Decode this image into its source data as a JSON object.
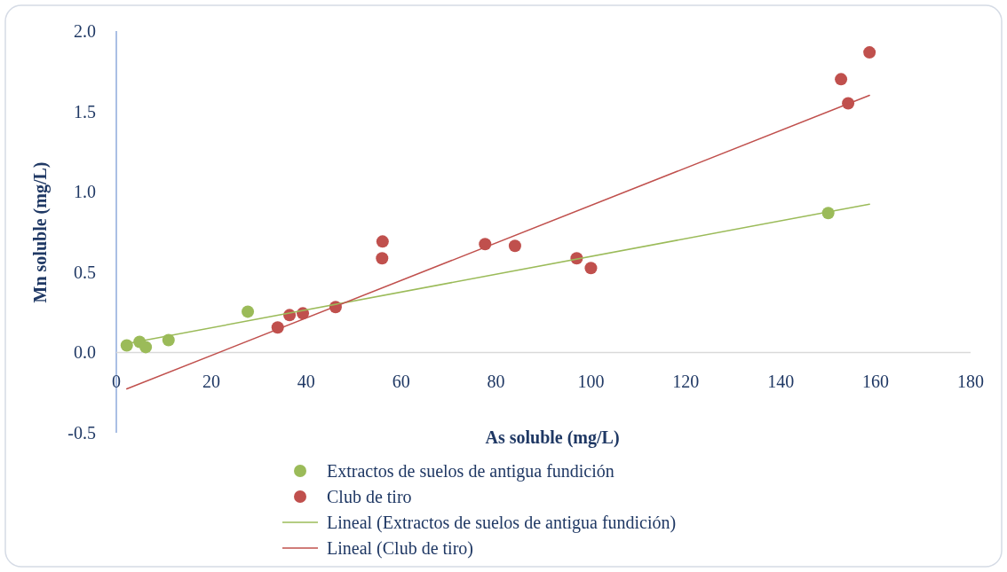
{
  "chart_data": {
    "type": "scatter",
    "xlabel": "As soluble (mg/L)",
    "ylabel": "Mn soluble (mg/L)",
    "xlim": [
      0,
      180
    ],
    "xticks": [
      0,
      20,
      40,
      60,
      80,
      100,
      120,
      140,
      160,
      180
    ],
    "ylim": [
      -0.5,
      2
    ],
    "yticks": [
      {
        "value": -0.5,
        "label": "-0.5"
      },
      {
        "value": 0,
        "label": "0.0"
      },
      {
        "value": 0.5,
        "label": "0.5"
      },
      {
        "value": 1,
        "label": "1.0"
      },
      {
        "value": 1.5,
        "label": "1.5"
      },
      {
        "value": 2,
        "label": "2.0"
      }
    ],
    "grid": false,
    "legend": "bottom",
    "marker": "circle",
    "series": [
      {
        "name": "Extractos de suelos de antigua fundición",
        "color": "#9bbb59",
        "x": [
          2.2,
          4.9,
          6.2,
          11,
          27.7,
          150
        ],
        "values": [
          0.044,
          0.066,
          0.033,
          0.077,
          0.254,
          0.867
        ]
      },
      {
        "name": "Club de tiro",
        "color": "#c0504d",
        "x": [
          34,
          36.5,
          39.3,
          46.2,
          56,
          56.1,
          77.7,
          84,
          97,
          100,
          152.7,
          154.2,
          158.7
        ],
        "values": [
          0.155,
          0.232,
          0.243,
          0.282,
          0.586,
          0.69,
          0.674,
          0.663,
          0.586,
          0.525,
          1.7,
          1.55,
          1.867
        ]
      },
      {
        "name": "Lineal (Extractos de suelos de antigua fundición)",
        "type": "line",
        "marker": "none",
        "line_style": "solid",
        "color": "#9bbb59",
        "x": [
          2.2,
          158.7
        ],
        "values": [
          0.055,
          0.923
        ]
      },
      {
        "name": "Lineal (Club de tiro)",
        "type": "line",
        "marker": "none",
        "line_style": "solid",
        "color": "#c0504d",
        "x": [
          2.2,
          158.7
        ],
        "values": [
          -0.227,
          1.6
        ]
      }
    ]
  }
}
